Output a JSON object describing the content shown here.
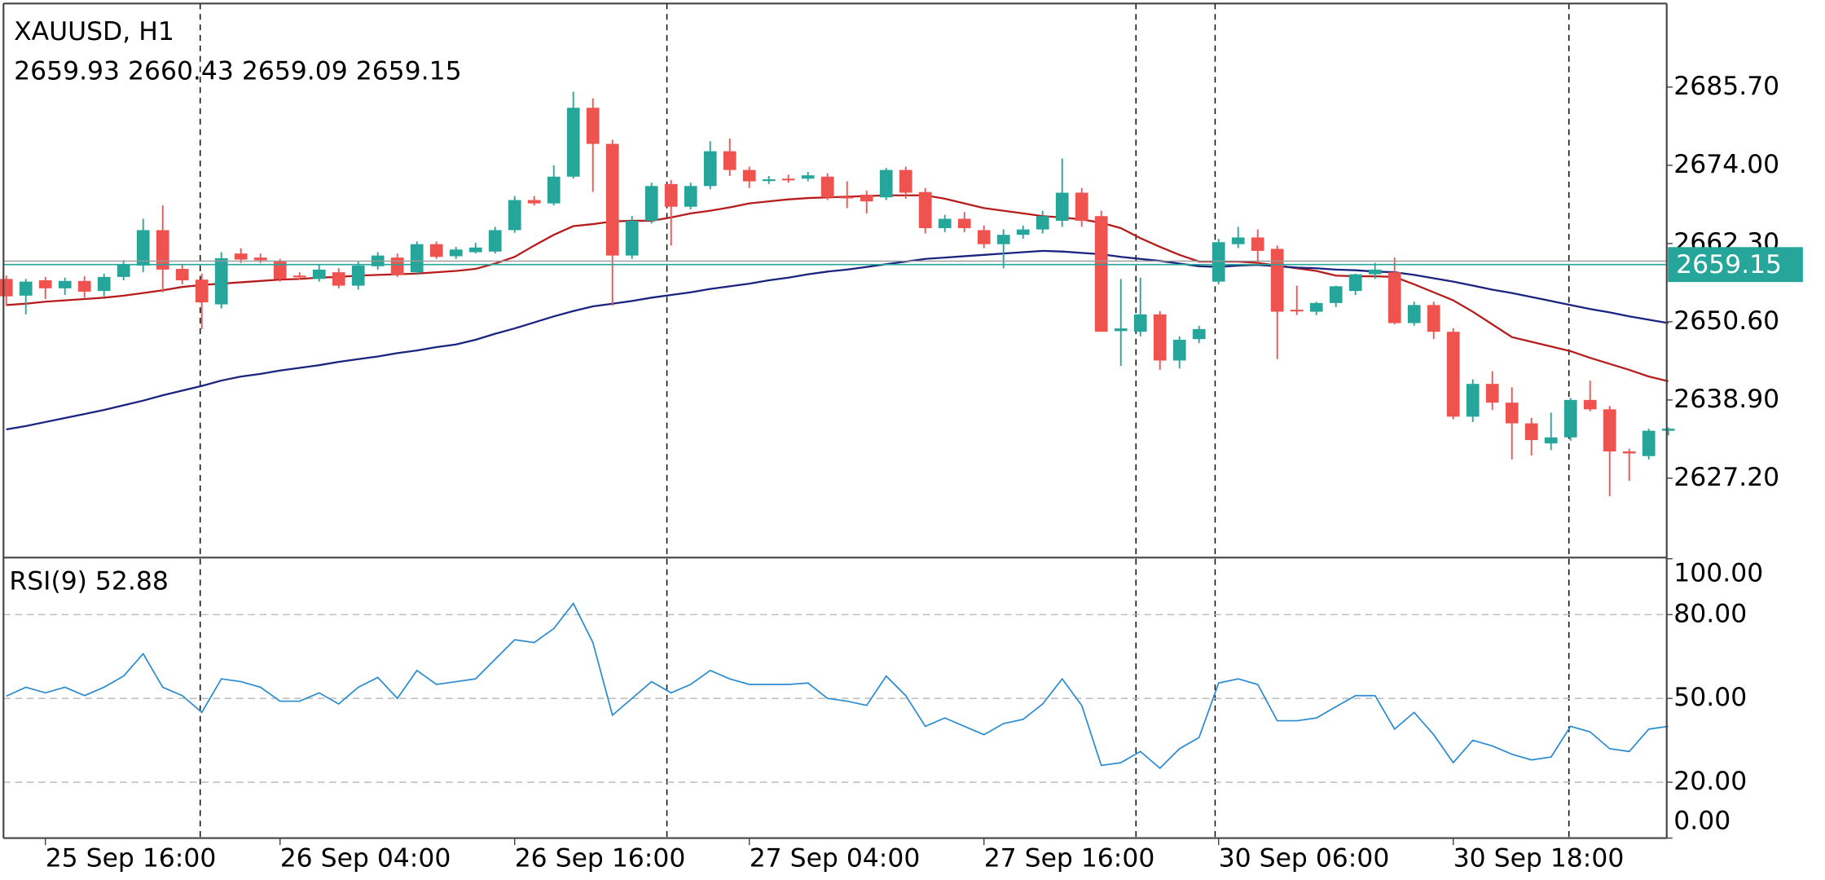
{
  "chart_data": [
    {
      "type": "candlestick",
      "title": "XAUUSD, H1",
      "subtitle": "2659.93 2660.43 2659.09 2659.15",
      "categories": [
        null,
        null,
        "25 Sep 16:00",
        null,
        null,
        null,
        null,
        null,
        null,
        null,
        null,
        null,
        null,
        null,
        "26 Sep 04:00",
        null,
        null,
        null,
        null,
        null,
        null,
        null,
        null,
        null,
        null,
        null,
        "26 Sep 16:00",
        null,
        null,
        null,
        null,
        null,
        null,
        null,
        null,
        null,
        null,
        null,
        "27 Sep 04:00",
        null,
        null,
        null,
        null,
        null,
        null,
        null,
        null,
        null,
        null,
        null,
        "27 Sep 16:00",
        null,
        null,
        null,
        null,
        null,
        null,
        null,
        null,
        null,
        null,
        null,
        "30 Sep 06:00",
        null,
        null,
        null,
        null,
        null,
        null,
        null,
        null,
        null,
        null,
        null,
        "30 Sep 18:00",
        null,
        null,
        null,
        null,
        null,
        null,
        null,
        null,
        null,
        null,
        null
      ],
      "open": [
        2657.0,
        2654.5,
        2656.8,
        2655.6,
        2656.7,
        2655.2,
        2657.3,
        2659.0,
        2664.3,
        2658.5,
        2656.9,
        2653.2,
        2660.8,
        2660.2,
        2659.7,
        2657.5,
        2657.0,
        2658.0,
        2656.0,
        2658.9,
        2660.2,
        2658.0,
        2662.2,
        2660.4,
        2661.0,
        2661.1,
        2664.3,
        2668.8,
        2668.3,
        2672.3,
        2682.6,
        2677.2,
        2660.5,
        2665.7,
        2671.2,
        2667.8,
        2670.9,
        2676.1,
        2673.3,
        2671.8,
        2672.0,
        2672.0,
        2672.3,
        2669.3,
        2669.6,
        2669.2,
        2673.3,
        2670.0,
        2664.6,
        2666.0,
        2664.3,
        2662.2,
        2663.6,
        2664.4,
        2665.7,
        2669.9,
        2666.4,
        2649.2,
        2649.1,
        2651.7,
        2644.8,
        2648.0,
        2656.6,
        2662.2,
        2663.2,
        2661.5,
        2652.4,
        2652.1,
        2653.4,
        2655.2,
        2657.7,
        2658.0,
        2650.4,
        2653.1,
        2649.1,
        2636.4,
        2641.3,
        2638.5,
        2635.4,
        2632.4,
        2633.3,
        2638.9,
        2637.5,
        2631.2,
        2630.5,
        2634.3
      ],
      "high": [
        2657.5,
        2657.0,
        2657.3,
        2657.2,
        2657.4,
        2657.8,
        2659.8,
        2666.0,
        2668.0,
        2659.2,
        2657.8,
        2661.0,
        2661.6,
        2660.8,
        2660.0,
        2658.0,
        2659.2,
        2658.6,
        2659.6,
        2661.0,
        2660.8,
        2662.6,
        2662.6,
        2661.8,
        2662.4,
        2664.8,
        2669.4,
        2669.4,
        2674.0,
        2685.0,
        2684.0,
        2677.8,
        2666.4,
        2671.4,
        2671.8,
        2671.4,
        2677.6,
        2678.0,
        2673.8,
        2672.4,
        2672.6,
        2673.0,
        2672.8,
        2671.6,
        2670.2,
        2673.6,
        2673.8,
        2670.6,
        2666.6,
        2667.0,
        2665.0,
        2664.4,
        2665.0,
        2667.2,
        2675.0,
        2670.6,
        2667.2,
        2657.0,
        2657.2,
        2652.2,
        2648.4,
        2650.0,
        2663.0,
        2664.8,
        2664.4,
        2662.0,
        2656.0,
        2653.6,
        2656.0,
        2657.8,
        2659.4,
        2660.2,
        2653.6,
        2653.6,
        2649.6,
        2642.0,
        2643.2,
        2640.8,
        2636.2,
        2637.0,
        2639.2,
        2641.8,
        2638.0,
        2631.6,
        2634.6,
        2634.8
      ],
      "low": [
        2653.0,
        2651.7,
        2654.0,
        2654.6,
        2654.2,
        2654.4,
        2656.8,
        2658.0,
        2655.0,
        2656.2,
        2649.5,
        2652.6,
        2659.4,
        2659.4,
        2656.6,
        2656.9,
        2656.6,
        2655.6,
        2655.4,
        2658.4,
        2657.3,
        2657.6,
        2660.0,
        2660.0,
        2660.8,
        2660.8,
        2663.9,
        2668.0,
        2668.0,
        2672.0,
        2670.0,
        2653.0,
        2660.0,
        2665.3,
        2662.0,
        2667.4,
        2670.4,
        2672.4,
        2670.6,
        2671.2,
        2671.4,
        2671.6,
        2668.8,
        2667.6,
        2666.8,
        2668.8,
        2669.0,
        2663.8,
        2664.0,
        2664.0,
        2661.6,
        2658.6,
        2663.0,
        2663.8,
        2664.8,
        2664.8,
        2649.1,
        2644.0,
        2648.4,
        2643.4,
        2643.6,
        2647.4,
        2656.2,
        2661.6,
        2659.4,
        2645.0,
        2651.6,
        2651.6,
        2652.8,
        2654.6,
        2657.0,
        2650.2,
        2650.0,
        2648.0,
        2636.0,
        2635.6,
        2637.4,
        2630.0,
        2630.6,
        2631.4,
        2632.8,
        2637.2,
        2624.5,
        2626.8,
        2630.0,
        2633.6
      ],
      "close": [
        2654.4,
        2656.6,
        2655.6,
        2656.7,
        2655.1,
        2657.3,
        2659.1,
        2664.3,
        2658.4,
        2656.8,
        2653.5,
        2660.1,
        2659.9,
        2659.8,
        2657.0,
        2657.3,
        2658.4,
        2656.0,
        2659.0,
        2660.5,
        2657.6,
        2662.2,
        2660.3,
        2661.4,
        2661.7,
        2664.3,
        2668.8,
        2668.3,
        2672.3,
        2682.6,
        2677.2,
        2660.5,
        2665.7,
        2670.9,
        2667.8,
        2670.9,
        2676.1,
        2673.3,
        2671.6,
        2671.9,
        2671.9,
        2672.5,
        2669.2,
        2669.2,
        2668.6,
        2673.3,
        2669.9,
        2664.6,
        2666.0,
        2664.6,
        2662.2,
        2663.6,
        2664.4,
        2666.4,
        2669.9,
        2665.7,
        2649.1,
        2649.6,
        2651.7,
        2644.8,
        2647.9,
        2649.5,
        2662.5,
        2663.2,
        2661.2,
        2652.1,
        2652.2,
        2653.4,
        2655.9,
        2657.7,
        2658.4,
        2650.4,
        2653.1,
        2649.1,
        2636.4,
        2641.3,
        2638.5,
        2635.4,
        2632.9,
        2633.3,
        2638.9,
        2637.5,
        2631.2,
        2630.9,
        2634.3,
        2634.6
      ],
      "up_color": "#26a69a",
      "down_color": "#ef5350",
      "overlays": [
        {
          "color": "#b71c1c",
          "values": [
            2653.1,
            2653.3,
            2653.6,
            2653.8,
            2654.0,
            2654.2,
            2654.5,
            2654.9,
            2655.3,
            2655.8,
            2656.1,
            2656.3,
            2656.5,
            2656.7,
            2656.9,
            2657.0,
            2657.2,
            2657.3,
            2657.5,
            2657.6,
            2657.7,
            2657.8,
            2658.0,
            2658.2,
            2658.5,
            2659.3,
            2660.3,
            2662.0,
            2663.6,
            2664.9,
            2665.2,
            2665.6,
            2665.7,
            2665.7,
            2666.2,
            2666.8,
            2667.2,
            2667.7,
            2668.3,
            2668.6,
            2668.9,
            2669.1,
            2669.2,
            2669.3,
            2669.4,
            2669.5,
            2669.5,
            2669.5,
            2669.0,
            2668.3,
            2667.6,
            2667.2,
            2666.8,
            2666.4,
            2666.2,
            2665.9,
            2665.4,
            2664.6,
            2663.1,
            2661.8,
            2660.6,
            2659.6,
            2659.6,
            2659.6,
            2659.4,
            2659.0,
            2658.6,
            2658.2,
            2657.5,
            2657.4,
            2657.4,
            2657.3,
            2656.2,
            2655.0,
            2653.8,
            2652.1,
            2650.2,
            2648.3,
            2647.6,
            2646.9,
            2646.2,
            2645.2,
            2644.3,
            2643.4,
            2642.4,
            2641.7
          ]
        },
        {
          "color": "#1a237e",
          "values": [
            2634.5,
            2635.0,
            2635.6,
            2636.2,
            2636.8,
            2637.4,
            2638.1,
            2638.8,
            2639.6,
            2640.3,
            2641.0,
            2641.8,
            2642.4,
            2642.8,
            2643.3,
            2643.7,
            2644.1,
            2644.6,
            2645.0,
            2645.4,
            2645.9,
            2646.3,
            2646.8,
            2647.2,
            2647.9,
            2648.8,
            2649.6,
            2650.5,
            2651.4,
            2652.2,
            2652.9,
            2653.3,
            2653.7,
            2654.2,
            2654.6,
            2655.0,
            2655.5,
            2655.9,
            2656.3,
            2656.8,
            2657.2,
            2657.7,
            2658.1,
            2658.4,
            2658.8,
            2659.2,
            2659.6,
            2660.0,
            2660.2,
            2660.4,
            2660.6,
            2660.8,
            2661.0,
            2661.2,
            2661.1,
            2660.9,
            2660.7,
            2660.3,
            2660.0,
            2659.7,
            2659.3,
            2658.9,
            2658.8,
            2659.0,
            2659.1,
            2658.9,
            2658.7,
            2658.6,
            2658.4,
            2658.3,
            2658.1,
            2658.0,
            2657.6,
            2657.1,
            2656.6,
            2656.0,
            2655.4,
            2654.9,
            2654.3,
            2653.7,
            2653.1,
            2652.5,
            2652.0,
            2651.4,
            2650.9,
            2650.4
          ]
        }
      ],
      "current_price": 2659.15,
      "current_price_color": "#26a69a",
      "ylim": [
        2615.5,
        2698.2
      ],
      "yticks": [
        {
          "value": 2627.2,
          "label": "2627.20"
        },
        {
          "value": 2638.9,
          "label": "2638.90"
        },
        {
          "value": 2650.6,
          "label": "2650.60"
        },
        {
          "value": 2662.3,
          "label": "2662.30"
        },
        {
          "value": 2674,
          "label": "2674.00"
        },
        {
          "value": 2685.7,
          "label": "2685.70"
        }
      ],
      "grid": false
    },
    {
      "type": "line",
      "title": "RSI(9) 52.88",
      "color": "#2a8bd0",
      "values": [
        50.8,
        54,
        52,
        54,
        51,
        54,
        58,
        66,
        54,
        51,
        45,
        57,
        56,
        54,
        49,
        49,
        52,
        48,
        54,
        57.5,
        50,
        60,
        55,
        56,
        57,
        64,
        71,
        70,
        75,
        84,
        70,
        44,
        50,
        56,
        52,
        55,
        60,
        57,
        55,
        55,
        55,
        55.5,
        50,
        49,
        47.5,
        58,
        51,
        40,
        43,
        40,
        37,
        41,
        42.5,
        48,
        57,
        47.5,
        26,
        27,
        31,
        25,
        32,
        36,
        55.5,
        57,
        55,
        42,
        42,
        43,
        47,
        51,
        51,
        39,
        45,
        37,
        27,
        35,
        33,
        30,
        28,
        29,
        40,
        38,
        32,
        31,
        39,
        40
      ],
      "ylim": [
        0,
        100
      ],
      "yticks": [
        {
          "value": 0,
          "label": "0.00"
        },
        {
          "value": 20,
          "label": "20.00"
        },
        {
          "value": 50,
          "label": "50.00"
        },
        {
          "value": 80,
          "label": "80.00"
        },
        {
          "value": 100,
          "label": "100.00"
        }
      ],
      "grid": true
    }
  ]
}
